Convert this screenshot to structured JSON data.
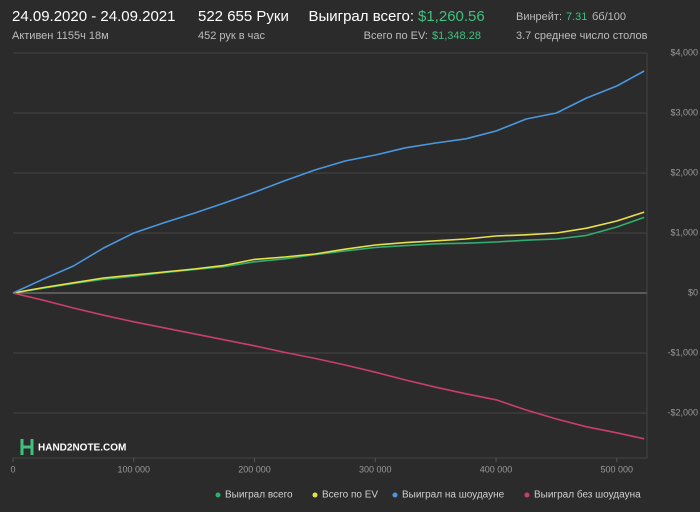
{
  "header": {
    "period": "24.09.2020 - 24.09.2021",
    "active": "Активен 1155ч 18м",
    "hands": "522 655 Руки",
    "hands_per_hour": "452 рук в час",
    "won_label": "Выиграл всего:",
    "won_value": "$1,260.56",
    "ev_label": "Всего по EV:",
    "ev_value": "$1,348.28",
    "winrate_label": "Винрейт:",
    "winrate_value": "7.31",
    "winrate_unit": "бб/100",
    "tables": "3.7 среднее число столов",
    "logo": "HAND2NOTE.COM"
  },
  "chart_data": {
    "type": "line",
    "x": [
      0,
      25000,
      50000,
      75000,
      100000,
      125000,
      150000,
      175000,
      200000,
      225000,
      250000,
      275000,
      300000,
      325000,
      350000,
      375000,
      400000,
      425000,
      450000,
      475000,
      500000,
      522655
    ],
    "series": [
      {
        "name": "Выиграл всего",
        "color": "#2fae6e",
        "values": [
          0,
          80,
          160,
          230,
          280,
          340,
          390,
          440,
          520,
          570,
          640,
          700,
          760,
          790,
          820,
          830,
          850,
          880,
          900,
          960,
          1100,
          1260
        ]
      },
      {
        "name": "Всего по EV",
        "color": "#e6e04a",
        "values": [
          0,
          90,
          170,
          250,
          300,
          350,
          400,
          460,
          560,
          600,
          650,
          730,
          800,
          840,
          870,
          900,
          950,
          970,
          1000,
          1080,
          1200,
          1348
        ]
      },
      {
        "name": "Выиграл на шоудауне",
        "color": "#4a97e0",
        "values": [
          0,
          230,
          450,
          750,
          1000,
          1170,
          1330,
          1500,
          1680,
          1870,
          2050,
          2200,
          2300,
          2420,
          2500,
          2570,
          2700,
          2900,
          3000,
          3250,
          3450,
          3700
        ]
      },
      {
        "name": "Выиграл без шоудауна",
        "color": "#c93f6a",
        "values": [
          0,
          -120,
          -250,
          -370,
          -480,
          -580,
          -680,
          -780,
          -880,
          -990,
          -1090,
          -1200,
          -1320,
          -1450,
          -1570,
          -1680,
          -1780,
          -1950,
          -2100,
          -2230,
          -2330,
          -2430
        ]
      }
    ],
    "xlim": [
      0,
      525000
    ],
    "ylim": [
      -2750,
      4000
    ],
    "xticks": [
      0,
      {
        "value": 100000,
        "label": "100 000"
      },
      {
        "value": 200000,
        "label": "200 000"
      },
      {
        "value": 300000,
        "label": "300 000"
      },
      {
        "value": 400000,
        "label": "400 000"
      },
      {
        "value": 500000,
        "label": "500 000"
      }
    ],
    "yticks": [
      {
        "value": -2000,
        "label": "-$2,000"
      },
      {
        "value": -1000,
        "label": "-$1,000"
      },
      {
        "value": 0,
        "label": "$0"
      },
      {
        "value": 1000,
        "label": "$1,000"
      },
      {
        "value": 2000,
        "label": "$2,000"
      },
      {
        "value": 3000,
        "label": "$3,000"
      },
      {
        "value": 4000,
        "label": "$4,000"
      }
    ],
    "grid": true
  }
}
